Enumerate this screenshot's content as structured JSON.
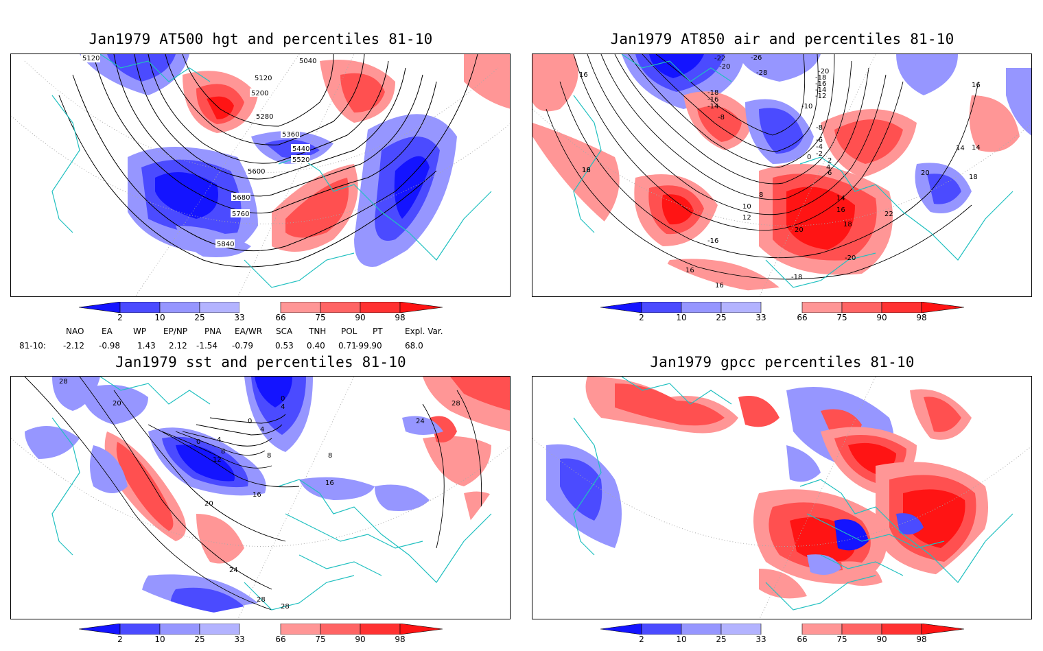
{
  "panels": [
    {
      "id": "hgt500",
      "title": "Jan1979 AT500 hgt and percentiles 81-10",
      "contour_labels": [
        "5040",
        "5120",
        "5120",
        "5200",
        "5280",
        "5360",
        "5440",
        "5520",
        "5600",
        "5680",
        "5760",
        "5840"
      ]
    },
    {
      "id": "air850",
      "title": "Jan1979 AT850 air and percentiles 81-10",
      "contour_labels": [
        "16",
        "-22",
        "-20",
        "-26",
        "-28",
        "-20",
        "-18",
        "-16",
        "-14",
        "-12",
        "-10",
        "-18",
        "-16",
        "-14",
        "-8",
        "-8",
        "-6",
        "-4",
        "-2",
        "0",
        "2",
        "4",
        "6",
        "8",
        "10",
        "12",
        "14",
        "14",
        "16",
        "16",
        "18",
        "18",
        "18",
        "20",
        "20",
        "22",
        "-16",
        "-20",
        "-18",
        "16",
        "16",
        "14",
        "16"
      ]
    },
    {
      "id": "sst",
      "title": "Jan1979 sst and percentiles 81-10",
      "contour_labels": [
        "28",
        "20",
        "0",
        "4",
        "8",
        "12",
        "16",
        "20",
        "24",
        "28",
        "28",
        "0",
        "4",
        "0",
        "4",
        "8",
        "8",
        "16",
        "24",
        "28"
      ]
    },
    {
      "id": "gpcc",
      "title": "Jan1979 gpcc percentiles 81-10",
      "contour_labels": []
    }
  ],
  "colorbar": {
    "labels": [
      "2",
      "10",
      "25",
      "33",
      "66",
      "75",
      "90",
      "98"
    ],
    "colors": {
      "deep_blue": "#1414ff",
      "mid_blue": "#4b4bff",
      "light_blue": "#9696ff",
      "light_red": "#ff9696",
      "mid_red": "#ff5050",
      "deep_red": "#ff1414"
    }
  },
  "indices": {
    "headers": [
      "NAO",
      "EA",
      "WP",
      "EP/NP",
      "PNA",
      "EA/WR",
      "SCA",
      "TNH",
      "POL",
      "PT",
      "Expl. Var."
    ],
    "row_label": "81-10:",
    "values": [
      "-2.12",
      "-0.98",
      "1.43",
      "2.12",
      "-1.54",
      "-0.79",
      "0.53",
      "0.40",
      "0.71",
      "-99.90",
      "68.0"
    ]
  },
  "colors": {
    "coast": "#20c0c0",
    "grid": "#aaaaaa",
    "contour": "#000000"
  }
}
